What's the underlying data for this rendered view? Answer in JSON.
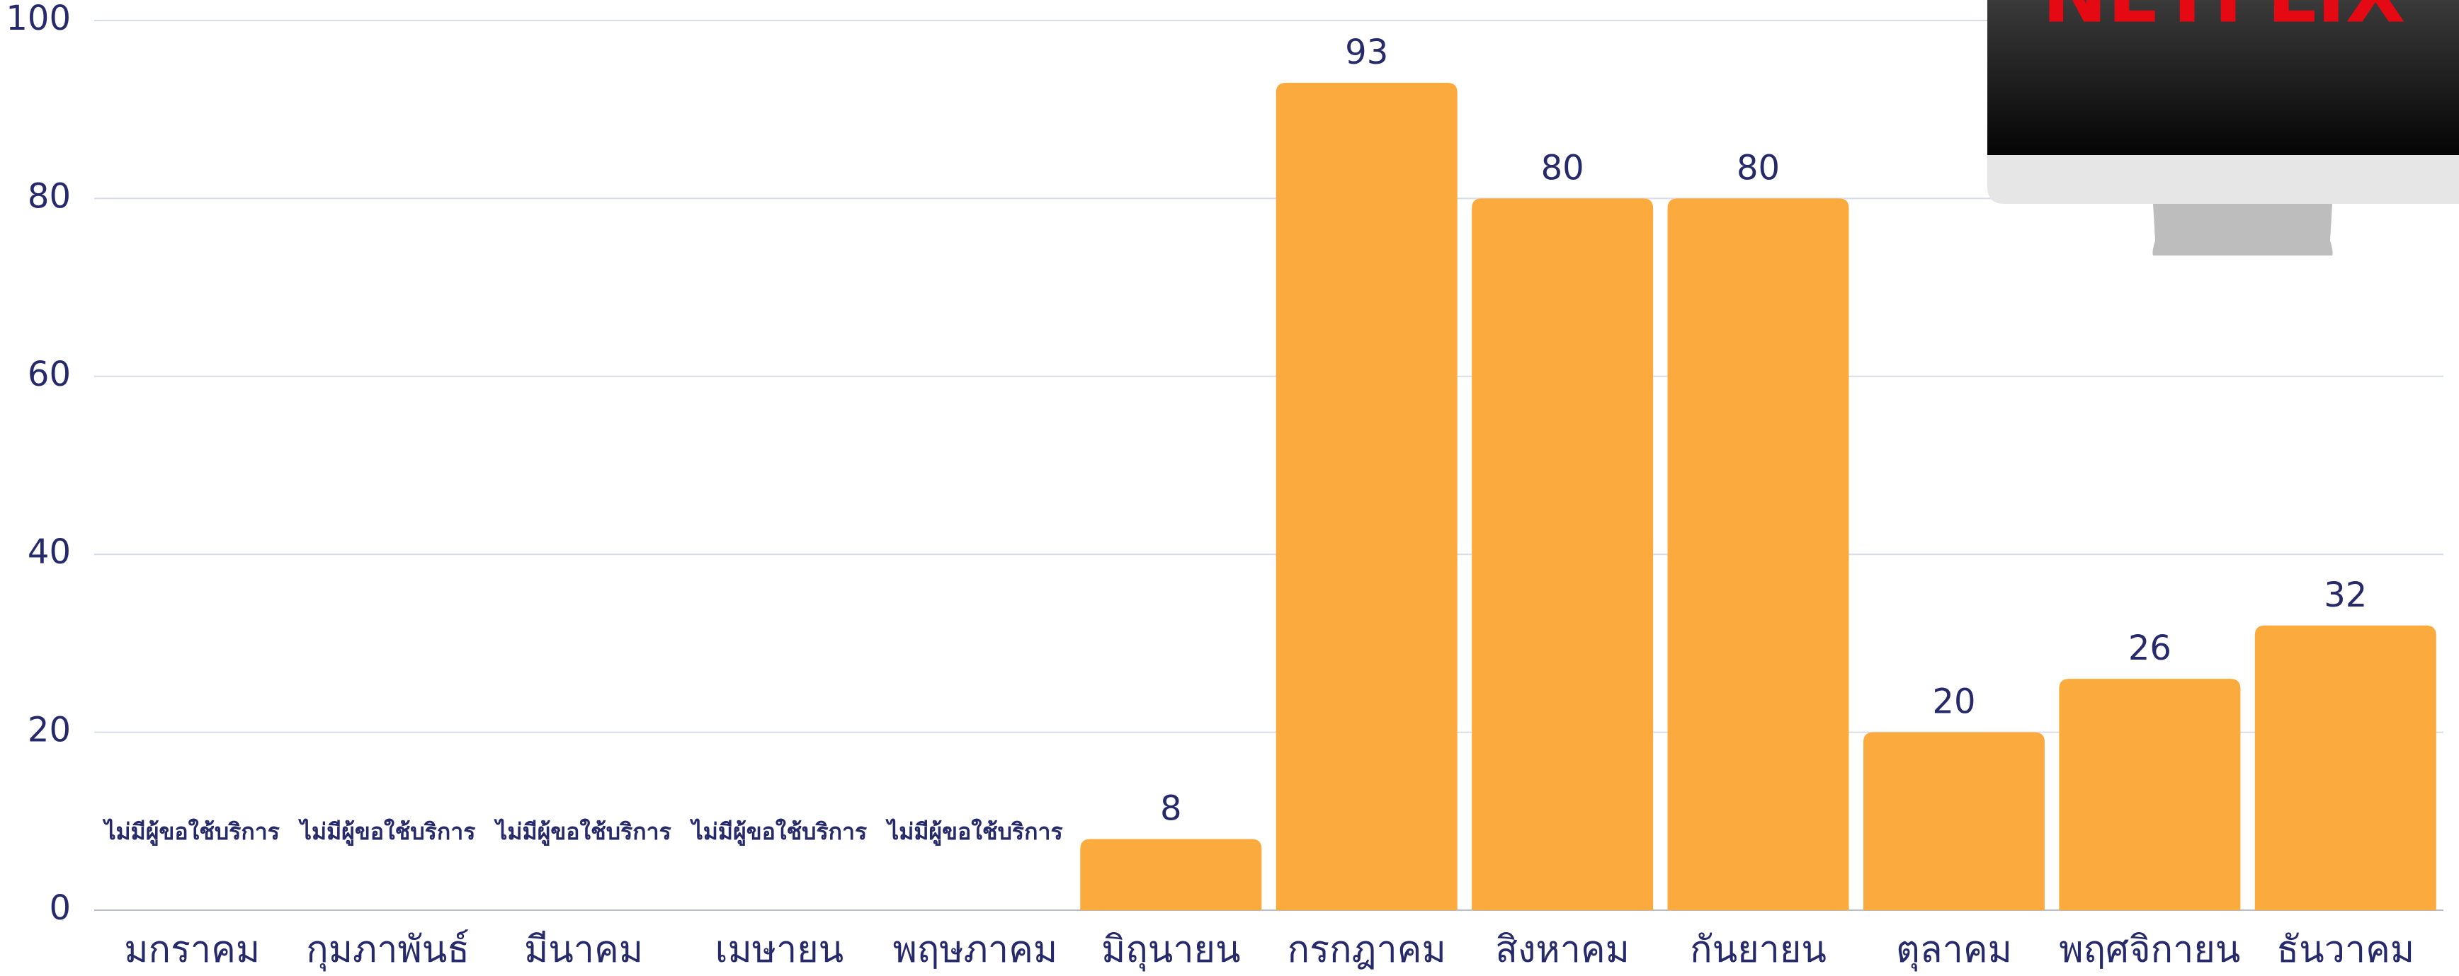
{
  "chart_data": {
    "type": "bar",
    "categories": [
      "มกราคม",
      "กุมภาพันธ์",
      "มีนาคม",
      "เมษายน",
      "พฤษภาคม",
      "มิถุนายน",
      "กรกฎาคม",
      "สิงหาคม",
      "กันยายน",
      "ตุลาคม",
      "พฤศจิกายน",
      "ธันวาคม"
    ],
    "values": [
      null,
      null,
      null,
      null,
      null,
      8,
      93,
      80,
      80,
      20,
      26,
      32
    ],
    "value_labels": [
      "ไม่มีผู้ขอใช้บริการ",
      "ไม่มีผู้ขอใช้บริการ",
      "ไม่มีผู้ขอใช้บริการ",
      "ไม่มีผู้ขอใช้บริการ",
      "ไม่มีผู้ขอใช้บริการ",
      null,
      null,
      null,
      null,
      null,
      null,
      null
    ],
    "color": "#fbab3d",
    "ylim": [
      0,
      100
    ],
    "yticks": [
      0,
      20,
      40,
      60,
      80,
      100
    ],
    "grid": true,
    "image_text": "NETFLIX"
  }
}
